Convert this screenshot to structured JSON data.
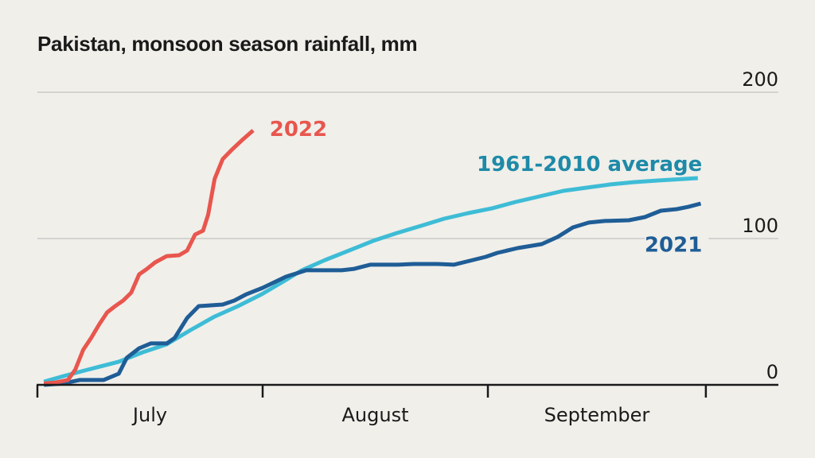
{
  "chart_data": {
    "type": "line",
    "title": "Pakistan, monsoon season rainfall, mm",
    "xlabel": "",
    "ylabel": "",
    "x_unit": "days since July 1",
    "xlim": [
      0,
      92
    ],
    "ylim": [
      0,
      200
    ],
    "y_ticks": [
      0,
      100,
      200
    ],
    "y_tick_labels": [
      "0",
      "100",
      "200"
    ],
    "y_axis_position": "right",
    "grid": true,
    "x_ticks": [
      0,
      31,
      62,
      92
    ],
    "x_tick_labels": [
      {
        "label": "July",
        "center": 15.5
      },
      {
        "label": "August",
        "center": 46.5
      },
      {
        "label": "September",
        "center": 77
      }
    ],
    "legend": "inline-labels",
    "series": [
      {
        "name": "2022",
        "label": "2022",
        "color": "#e8564e",
        "label_color": "#e8564e",
        "label_at": [
          31.3,
          175
        ],
        "points": [
          [
            0.9,
            1
          ],
          [
            2.5,
            1.6
          ],
          [
            4.2,
            3.3
          ],
          [
            5.2,
            10.3
          ],
          [
            6.3,
            23.9
          ],
          [
            7.4,
            32.1
          ],
          [
            8.5,
            41.3
          ],
          [
            9.6,
            49.5
          ],
          [
            10.7,
            53.8
          ],
          [
            11.8,
            57.6
          ],
          [
            12.9,
            63
          ],
          [
            14,
            75.5
          ],
          [
            15.1,
            79.3
          ],
          [
            16.2,
            83.7
          ],
          [
            17.8,
            88
          ],
          [
            19.5,
            88.6
          ],
          [
            20.6,
            91.8
          ],
          [
            21.7,
            102.7
          ],
          [
            22.8,
            105.4
          ],
          [
            23.5,
            116.3
          ],
          [
            24.4,
            140.8
          ],
          [
            25.5,
            154.3
          ],
          [
            26.8,
            160.9
          ],
          [
            28.3,
            167.9
          ],
          [
            29.7,
            173.9
          ]
        ]
      },
      {
        "name": "1961-2010 average",
        "label": "1961-2010 average",
        "color": "#3ebcd6",
        "label_color": "#1e8aa8",
        "label_at": [
          91.5,
          151
        ],
        "points": [
          [
            0.9,
            2.2
          ],
          [
            3.6,
            6
          ],
          [
            6.9,
            10.3
          ],
          [
            11.2,
            15.8
          ],
          [
            14.5,
            22.3
          ],
          [
            17.8,
            27.7
          ],
          [
            21.1,
            37.5
          ],
          [
            24.4,
            46.7
          ],
          [
            27.6,
            53.8
          ],
          [
            30.9,
            62
          ],
          [
            34.2,
            71.7
          ],
          [
            36.4,
            78.3
          ],
          [
            39.6,
            85.3
          ],
          [
            42.9,
            91.8
          ],
          [
            46.2,
            98.4
          ],
          [
            49.5,
            103.8
          ],
          [
            52.8,
            108.7
          ],
          [
            56,
            113.6
          ],
          [
            59.3,
            117.4
          ],
          [
            62.6,
            120.7
          ],
          [
            65.8,
            125
          ],
          [
            69.1,
            128.8
          ],
          [
            72.4,
            132.6
          ],
          [
            75.6,
            134.8
          ],
          [
            78.9,
            137
          ],
          [
            82.2,
            138.6
          ],
          [
            85.4,
            139.7
          ],
          [
            90.9,
            141.3
          ]
        ]
      },
      {
        "name": "2021",
        "label": "2021",
        "color": "#1f5d96",
        "label_color": "#1f5d96",
        "label_at": [
          91.5,
          96
        ],
        "points": [
          [
            0.9,
            0
          ],
          [
            3.6,
            1
          ],
          [
            5.8,
            3.3
          ],
          [
            9.1,
            3.3
          ],
          [
            11.2,
            7.6
          ],
          [
            12.3,
            18.5
          ],
          [
            14,
            25
          ],
          [
            15.6,
            28.3
          ],
          [
            17.8,
            28.3
          ],
          [
            18.9,
            32.1
          ],
          [
            20.6,
            45.7
          ],
          [
            22.2,
            53.8
          ],
          [
            25.5,
            54.9
          ],
          [
            27.1,
            57.6
          ],
          [
            28.8,
            62
          ],
          [
            31,
            66.3
          ],
          [
            32.6,
            70.1
          ],
          [
            34.2,
            73.9
          ],
          [
            35.9,
            76.6
          ],
          [
            37,
            78.3
          ],
          [
            38.6,
            78.3
          ],
          [
            41.9,
            78.3
          ],
          [
            43.6,
            79.3
          ],
          [
            45.8,
            82.1
          ],
          [
            49.6,
            82.1
          ],
          [
            51.8,
            82.6
          ],
          [
            55.1,
            82.6
          ],
          [
            57.3,
            82.1
          ],
          [
            59.5,
            84.8
          ],
          [
            61.7,
            87.5
          ],
          [
            63.3,
            90.2
          ],
          [
            66.1,
            93.5
          ],
          [
            69.4,
            96.2
          ],
          [
            71.6,
            101.1
          ],
          [
            73.7,
            107.6
          ],
          [
            75.9,
            110.9
          ],
          [
            78.1,
            112
          ],
          [
            81.4,
            112.5
          ],
          [
            83.6,
            114.7
          ],
          [
            85.8,
            119
          ],
          [
            88,
            120.1
          ],
          [
            89.6,
            121.7
          ],
          [
            91.3,
            123.9
          ]
        ]
      }
    ]
  }
}
